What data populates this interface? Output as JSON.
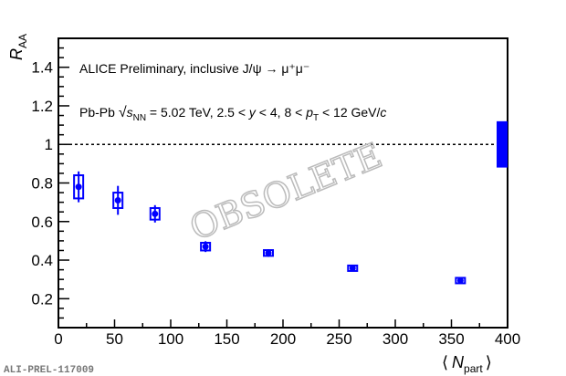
{
  "chart_data": {
    "type": "scatter",
    "title": "ALICE Preliminary, inclusive J/ψ → μ⁺μ⁻",
    "subtitle": "Pb-Pb √s_NN = 5.02 TeV, 2.5 < y < 4, 8 < p_T < 12 GeV/c",
    "subtitle_parts": {
      "a": "Pb-Pb ",
      "s": "s",
      "nn": "NN",
      "b": " = 5.02 TeV, 2.5 < ",
      "y": "y",
      "c": " < 4, 8 < ",
      "p": "p",
      "t": "T",
      "d": " < 12 GeV/",
      "cc": "c"
    },
    "xlabel": "⟨ N_part ⟩",
    "xlabel_parts": {
      "l": "⟨",
      "n": "N",
      "sub": "part",
      "r": "⟩"
    },
    "ylabel": "R_AA",
    "ylabel_parts": {
      "r": "R",
      "sub": "AA"
    },
    "xlim": [
      0,
      400
    ],
    "ylim": [
      0.05,
      1.55
    ],
    "xticks": [
      0,
      50,
      100,
      150,
      200,
      250,
      300,
      350,
      400
    ],
    "yticks": [
      0.2,
      0.4,
      0.6,
      0.8,
      1,
      1.2,
      1.4
    ],
    "reference_line": 1,
    "global_uncertainty": 0.12,
    "series": [
      {
        "name": "inclusive J/psi",
        "color": "#0000ff",
        "x": [
          18,
          53,
          86,
          131,
          187,
          262,
          358
        ],
        "y": [
          0.78,
          0.71,
          0.64,
          0.47,
          0.437,
          0.358,
          0.294
        ],
        "stat_err": [
          0.08,
          0.075,
          0.045,
          0.028,
          0.02,
          0.015,
          0.01
        ],
        "syst_err": [
          0.06,
          0.04,
          0.03,
          0.02,
          0.015,
          0.013,
          0.01
        ]
      }
    ],
    "watermark": "OBSOLETE",
    "footer_label": "ALI-PREL-117009",
    "grid": false
  }
}
